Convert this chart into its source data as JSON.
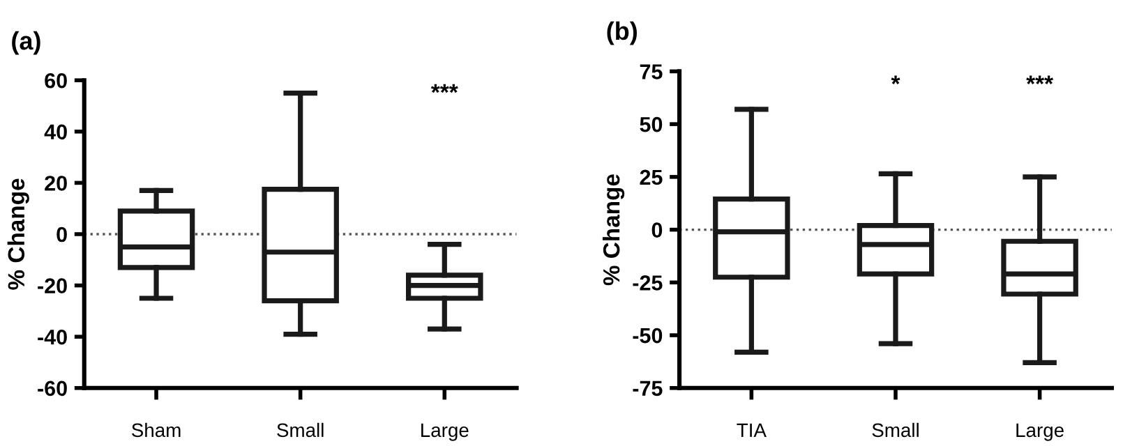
{
  "chart_data": [
    {
      "type": "box",
      "title": "(a)",
      "ylabel": "% Change",
      "categories": [
        "Sham",
        "Small",
        "Large"
      ],
      "color": "#1a1a1a",
      "boxes": [
        {
          "low": -25,
          "q1": -13,
          "median": -5,
          "q3": 9,
          "high": 17
        },
        {
          "low": -39,
          "q1": -26,
          "median": -7,
          "q3": 17.5,
          "high": 55
        },
        {
          "low": -37,
          "q1": -25,
          "median": -20,
          "q3": -16,
          "high": -4
        }
      ],
      "ylim": [
        -60,
        60
      ],
      "yticks": [
        -60,
        -40,
        -20,
        0,
        20,
        40,
        60
      ],
      "grid": false,
      "ref_lines": [
        {
          "axis": "y",
          "value": 0,
          "line_style": "dotted",
          "color": "#555555"
        }
      ],
      "annotations": [
        "***"
      ]
    },
    {
      "type": "box",
      "title": "(b)",
      "ylabel": "% Change",
      "categories": [
        "TIA",
        "Small",
        "Large"
      ],
      "color": "#1a1a1a",
      "boxes": [
        {
          "low": -58,
          "q1": -22.5,
          "median": -1,
          "q3": 14.5,
          "high": 57
        },
        {
          "low": -54,
          "q1": -21,
          "median": -7,
          "q3": 2,
          "high": 26.5
        },
        {
          "low": -63,
          "q1": -30.5,
          "median": -21,
          "q3": -5.5,
          "high": 25
        }
      ],
      "ylim": [
        -75,
        75
      ],
      "yticks": [
        -75,
        -50,
        -25,
        0,
        25,
        50,
        75
      ],
      "grid": false,
      "ref_lines": [
        {
          "axis": "y",
          "value": 0,
          "line_style": "dotted",
          "color": "#555555"
        }
      ],
      "annotations": [
        "*",
        "***"
      ]
    }
  ]
}
